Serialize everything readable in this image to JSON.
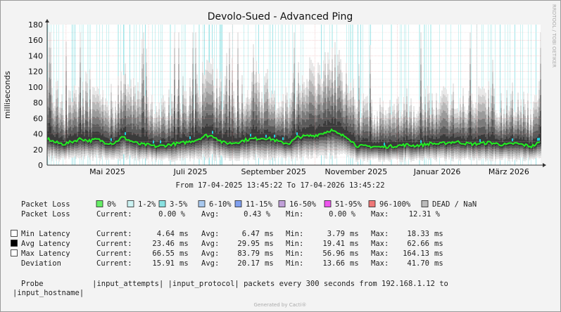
{
  "chart_data": {
    "type": "area",
    "title": "Devolo-Sued - Advanced Ping",
    "ylabel": "milliseconds",
    "watermark": "RRDTOOL / TOBI OETIKER",
    "ylim": [
      0,
      180
    ],
    "yticks": [
      "0",
      "20",
      "40",
      "60",
      "80",
      "100",
      "120",
      "140",
      "160",
      "180"
    ],
    "xticks": [
      "Mai 2025",
      "Juli 2025",
      "September 2025",
      "November 2025",
      "Januar 2026",
      "März 2026"
    ],
    "xtick_dates": [
      "2025-05-01",
      "2025-07-01",
      "2025-09-01",
      "2025-11-01",
      "2026-01-01",
      "2026-03-01"
    ],
    "x_range": [
      "2025-04-17",
      "2026-04-17"
    ],
    "range_text": "From 17-04-2025 13:45:22 To 17-04-2026 13:45:22",
    "grid": true,
    "series": [
      {
        "name": "Min Latency",
        "current": 4.64,
        "avg": 6.47,
        "min": 3.79,
        "max": 18.33
      },
      {
        "name": "Avg Latency",
        "current": 23.46,
        "avg": 29.95,
        "min": 19.41,
        "max": 62.66,
        "values_sampled": [
          34,
          29,
          27,
          30,
          34,
          31,
          33,
          29,
          28,
          36,
          31,
          27,
          26,
          24,
          25,
          27,
          28,
          30,
          33,
          38,
          37,
          29,
          28,
          30,
          33,
          34,
          35,
          33,
          29,
          28,
          36,
          37,
          38,
          41,
          45,
          39,
          36,
          25,
          24,
          24,
          23,
          24,
          25,
          26,
          25,
          26,
          28,
          27,
          29,
          30,
          28,
          27,
          28,
          29,
          27,
          26,
          28,
          26,
          24,
          29
        ]
      },
      {
        "name": "Max Latency",
        "current": 66.55,
        "avg": 83.79,
        "min": 56.96,
        "max": 164.13
      },
      {
        "name": "Deviation",
        "current": 15.91,
        "avg": 20.17,
        "min": 13.66,
        "max": 41.7
      }
    ],
    "loss_legend": [
      {
        "label": "0%",
        "color": "#66ee66"
      },
      {
        "label": "1-2%",
        "color": "#ccf2f2"
      },
      {
        "label": "3-5%",
        "color": "#88e0e0"
      },
      {
        "label": "6-10%",
        "color": "#a8c8ee"
      },
      {
        "label": "11-15%",
        "color": "#7f9fee"
      },
      {
        "label": "16-50%",
        "color": "#c0a0d8"
      },
      {
        "label": "51-95%",
        "color": "#ee55ee"
      },
      {
        "label": "96-100%",
        "color": "#ee7777"
      },
      {
        "label": "DEAD / NaN",
        "color": "#bbbbbb"
      }
    ],
    "packet_loss": {
      "current": "0.00 %",
      "avg": "0.43 %",
      "min": "0.00 %",
      "max": "12.31 %"
    }
  },
  "legend": {
    "packet_loss_label": "Packet Loss",
    "current_label": "Current:",
    "avg_label": "Avg:",
    "min_label": "Min:",
    "max_label": "Max:",
    "unit_ms": "ms",
    "rows": [
      {
        "label": "Min Latency",
        "current": "4.64",
        "avg": "6.47",
        "min": "3.79",
        "max": "18.33",
        "swatch": "#ffffff"
      },
      {
        "label": "Avg Latency",
        "current": "23.46",
        "avg": "29.95",
        "min": "19.41",
        "max": "62.66",
        "swatch": "#000000"
      },
      {
        "label": "Max Latency",
        "current": "66.55",
        "avg": "83.79",
        "min": "56.96",
        "max": "164.13",
        "swatch": "#ffffff"
      },
      {
        "label": "Deviation",
        "current": "15.91",
        "avg": "20.17",
        "min": "13.66",
        "max": "41.70",
        "swatch": ""
      }
    ]
  },
  "probe": {
    "line1": "Probe           |input_attempts| |input_protocol| packets every 300 seconds from 192.168.1.12 to",
    "line2": "|input_hostname|"
  },
  "footer": "Generated by Cacti®"
}
